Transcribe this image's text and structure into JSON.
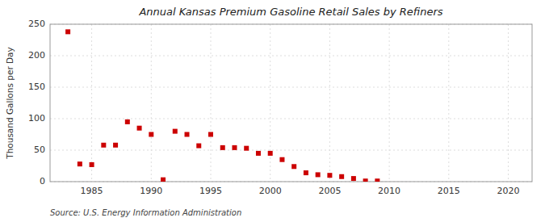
{
  "chart_data": {
    "type": "scatter",
    "title": "Annual Kansas Premium Gasoline Retail Sales by Refiners",
    "ylabel": "Thousand Gallons per Day",
    "annotations": [
      "Source: U.S. Energy Information Administration"
    ],
    "x": [
      1983,
      1984,
      1985,
      1986,
      1987,
      1988,
      1989,
      1990,
      1991,
      1992,
      1993,
      1994,
      1995,
      1996,
      1997,
      1998,
      1999,
      2000,
      2001,
      2002,
      2003,
      2004,
      2005,
      2006,
      2007,
      2008,
      2009
    ],
    "values": [
      238,
      28,
      27,
      58,
      58,
      95,
      85,
      75,
      3,
      80,
      75,
      57,
      75,
      54,
      54,
      53,
      45,
      45,
      35,
      24,
      14,
      11,
      10,
      8,
      5,
      1,
      1
    ],
    "color": "#cc0000",
    "marker": "square",
    "xlim": [
      1981.5,
      2022
    ],
    "ylim": [
      0,
      250
    ],
    "xticks": [
      1985,
      1990,
      1995,
      2000,
      2005,
      2010,
      2015,
      2020
    ],
    "yticks": [
      0,
      50,
      100,
      150,
      200,
      250
    ],
    "grid": true
  }
}
